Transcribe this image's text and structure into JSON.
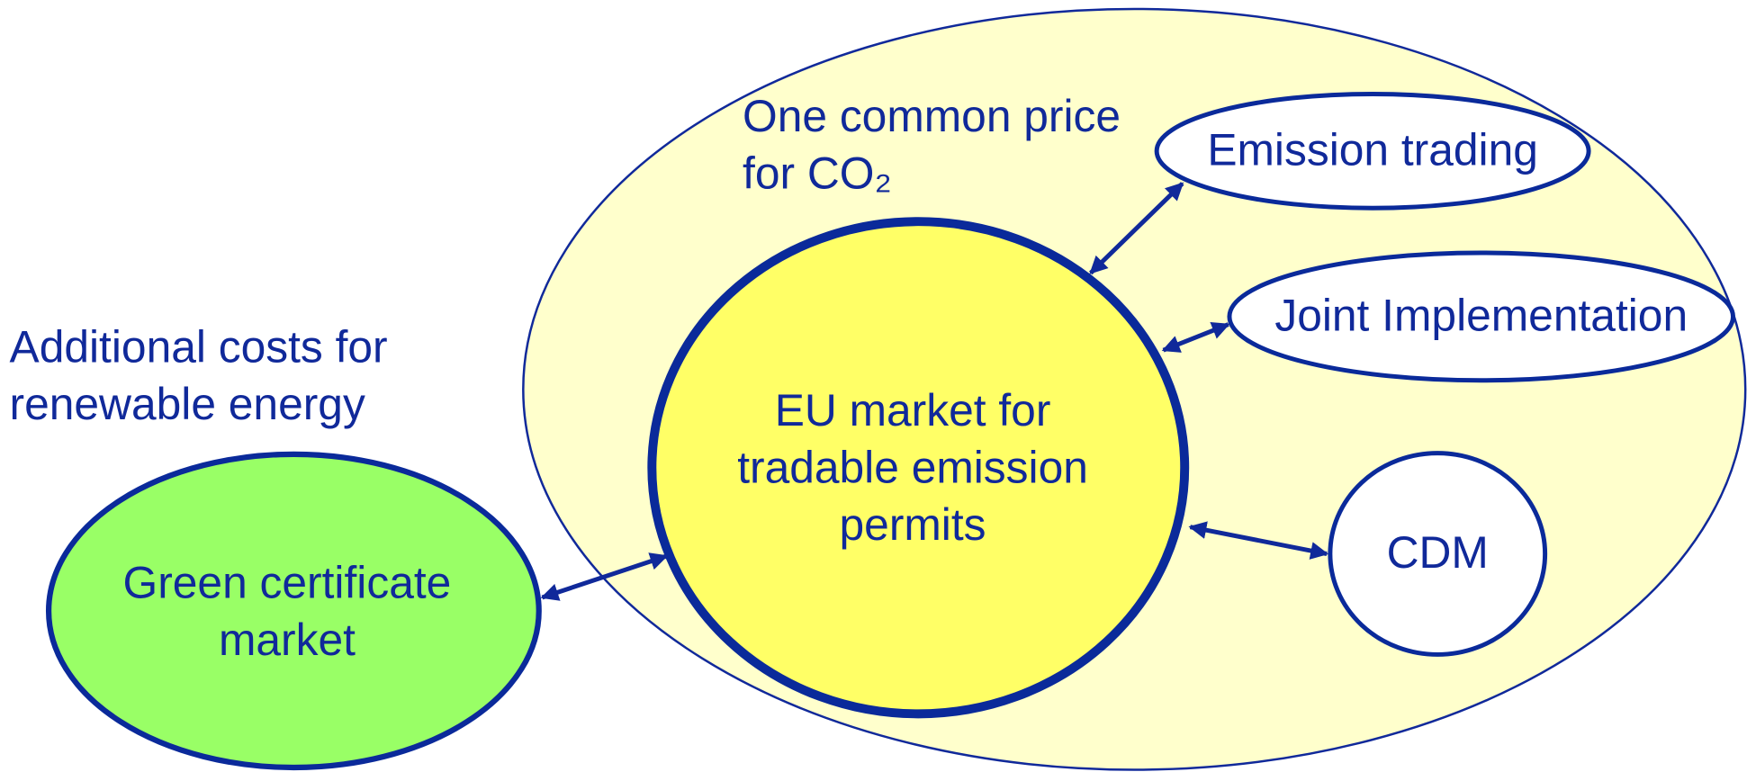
{
  "region": {
    "label_lines": [
      "One common price",
      "for CO₂"
    ]
  },
  "annotation": {
    "lines": [
      "Additional costs for",
      "renewable energy"
    ]
  },
  "nodes": [
    {
      "label_lines": [
        "EU market for",
        "tradable emission",
        "permits"
      ]
    },
    {
      "label_lines": [
        "Emission trading"
      ]
    },
    {
      "label_lines": [
        "Joint Implementation"
      ]
    },
    {
      "label_lines": [
        "CDM"
      ]
    },
    {
      "label_lines": [
        "Green certificate",
        "market"
      ]
    }
  ]
}
